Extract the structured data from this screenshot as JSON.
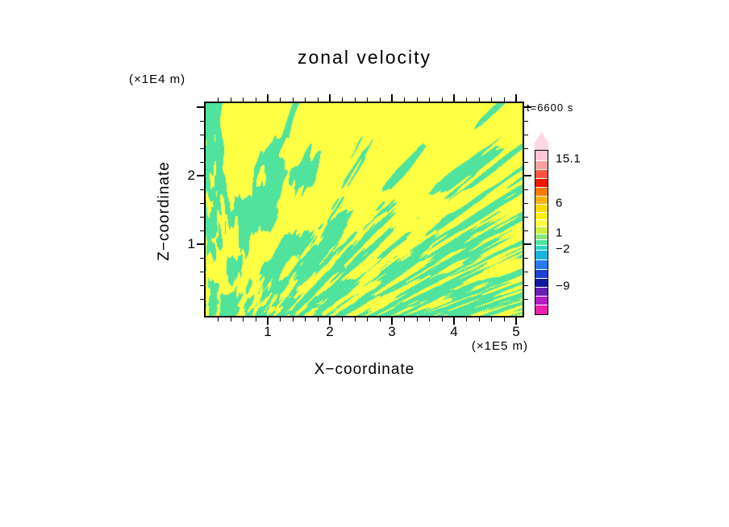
{
  "title": "zonal velocity",
  "time_label": "t=6600 s",
  "axes": {
    "x": {
      "label": "X−coordinate",
      "units": "(×1E5 m)",
      "tick_labels": [
        "1",
        "2",
        "3",
        "4",
        "5"
      ],
      "tick_values": [
        1,
        2,
        3,
        4,
        5
      ],
      "min": 0,
      "max": 5.1,
      "minor_step": 0.2
    },
    "z": {
      "label": "Z−coordinate",
      "units": "(×1E4 m)",
      "tick_labels": [
        "1",
        "2"
      ],
      "tick_values": [
        1,
        2
      ],
      "major_values": [
        1,
        2,
        3
      ],
      "min": 0,
      "max": 3.06,
      "minor_step": 0.2
    }
  },
  "colorbar": {
    "tick_labels": [
      "15.1",
      "6",
      "1",
      "−2",
      "−9"
    ],
    "tick_values": [
      15.1,
      6,
      1,
      -2,
      -9
    ],
    "arrow_color": "#ffd7e4",
    "band_colors": [
      "#ffc4d6",
      "#ff9f9f",
      "#ff5340",
      "#f01800",
      "#ff7a00",
      "#ffb300",
      "#ffd800",
      "#fff200",
      "#ffff44",
      "#d0f03c",
      "#8ae878",
      "#4fe39e",
      "#2ad4c8",
      "#19b4e0",
      "#2979ff",
      "#1f3fd4",
      "#101a9e",
      "#6a1fb4",
      "#b01fc4",
      "#ef1fae"
    ]
  },
  "field": {
    "positive_color": "#ffff44",
    "negative_color": "#4fe39e"
  },
  "chart_data": {
    "type": "heatmap",
    "title": "zonal velocity",
    "xlabel": "X−coordinate",
    "x_units": "×1E5 m",
    "ylabel": "Z−coordinate",
    "y_units": "×1E4 m",
    "xlim": [
      0,
      5.1
    ],
    "ylim": [
      0,
      3.06
    ],
    "x_ticks": [
      1,
      2,
      3,
      4,
      5
    ],
    "y_ticks": [
      1,
      2
    ],
    "annotation": "t=6600 s",
    "colorbar_ticks": [
      15.1,
      6,
      1,
      -2,
      -9
    ],
    "colorbar_range": [
      -15,
      18
    ],
    "legend_position": "right",
    "grid": false,
    "series_description": "Filled-contour field of zonal velocity over a 5.1×1E5 m wide by 3.06×1E4 m deep domain at t=6600 s. Visible rendering is two-tone: yellow cells are weakly positive velocity (≈ 0 to +1) and spring-green cells weakly negative (≈ −2 to 0). The pattern is turbulent convection-like vertical plumes: broad yellow-dominated plumes in the upper half, progressively finer interleaved yellow/green streaks toward the bottom boundary."
  }
}
